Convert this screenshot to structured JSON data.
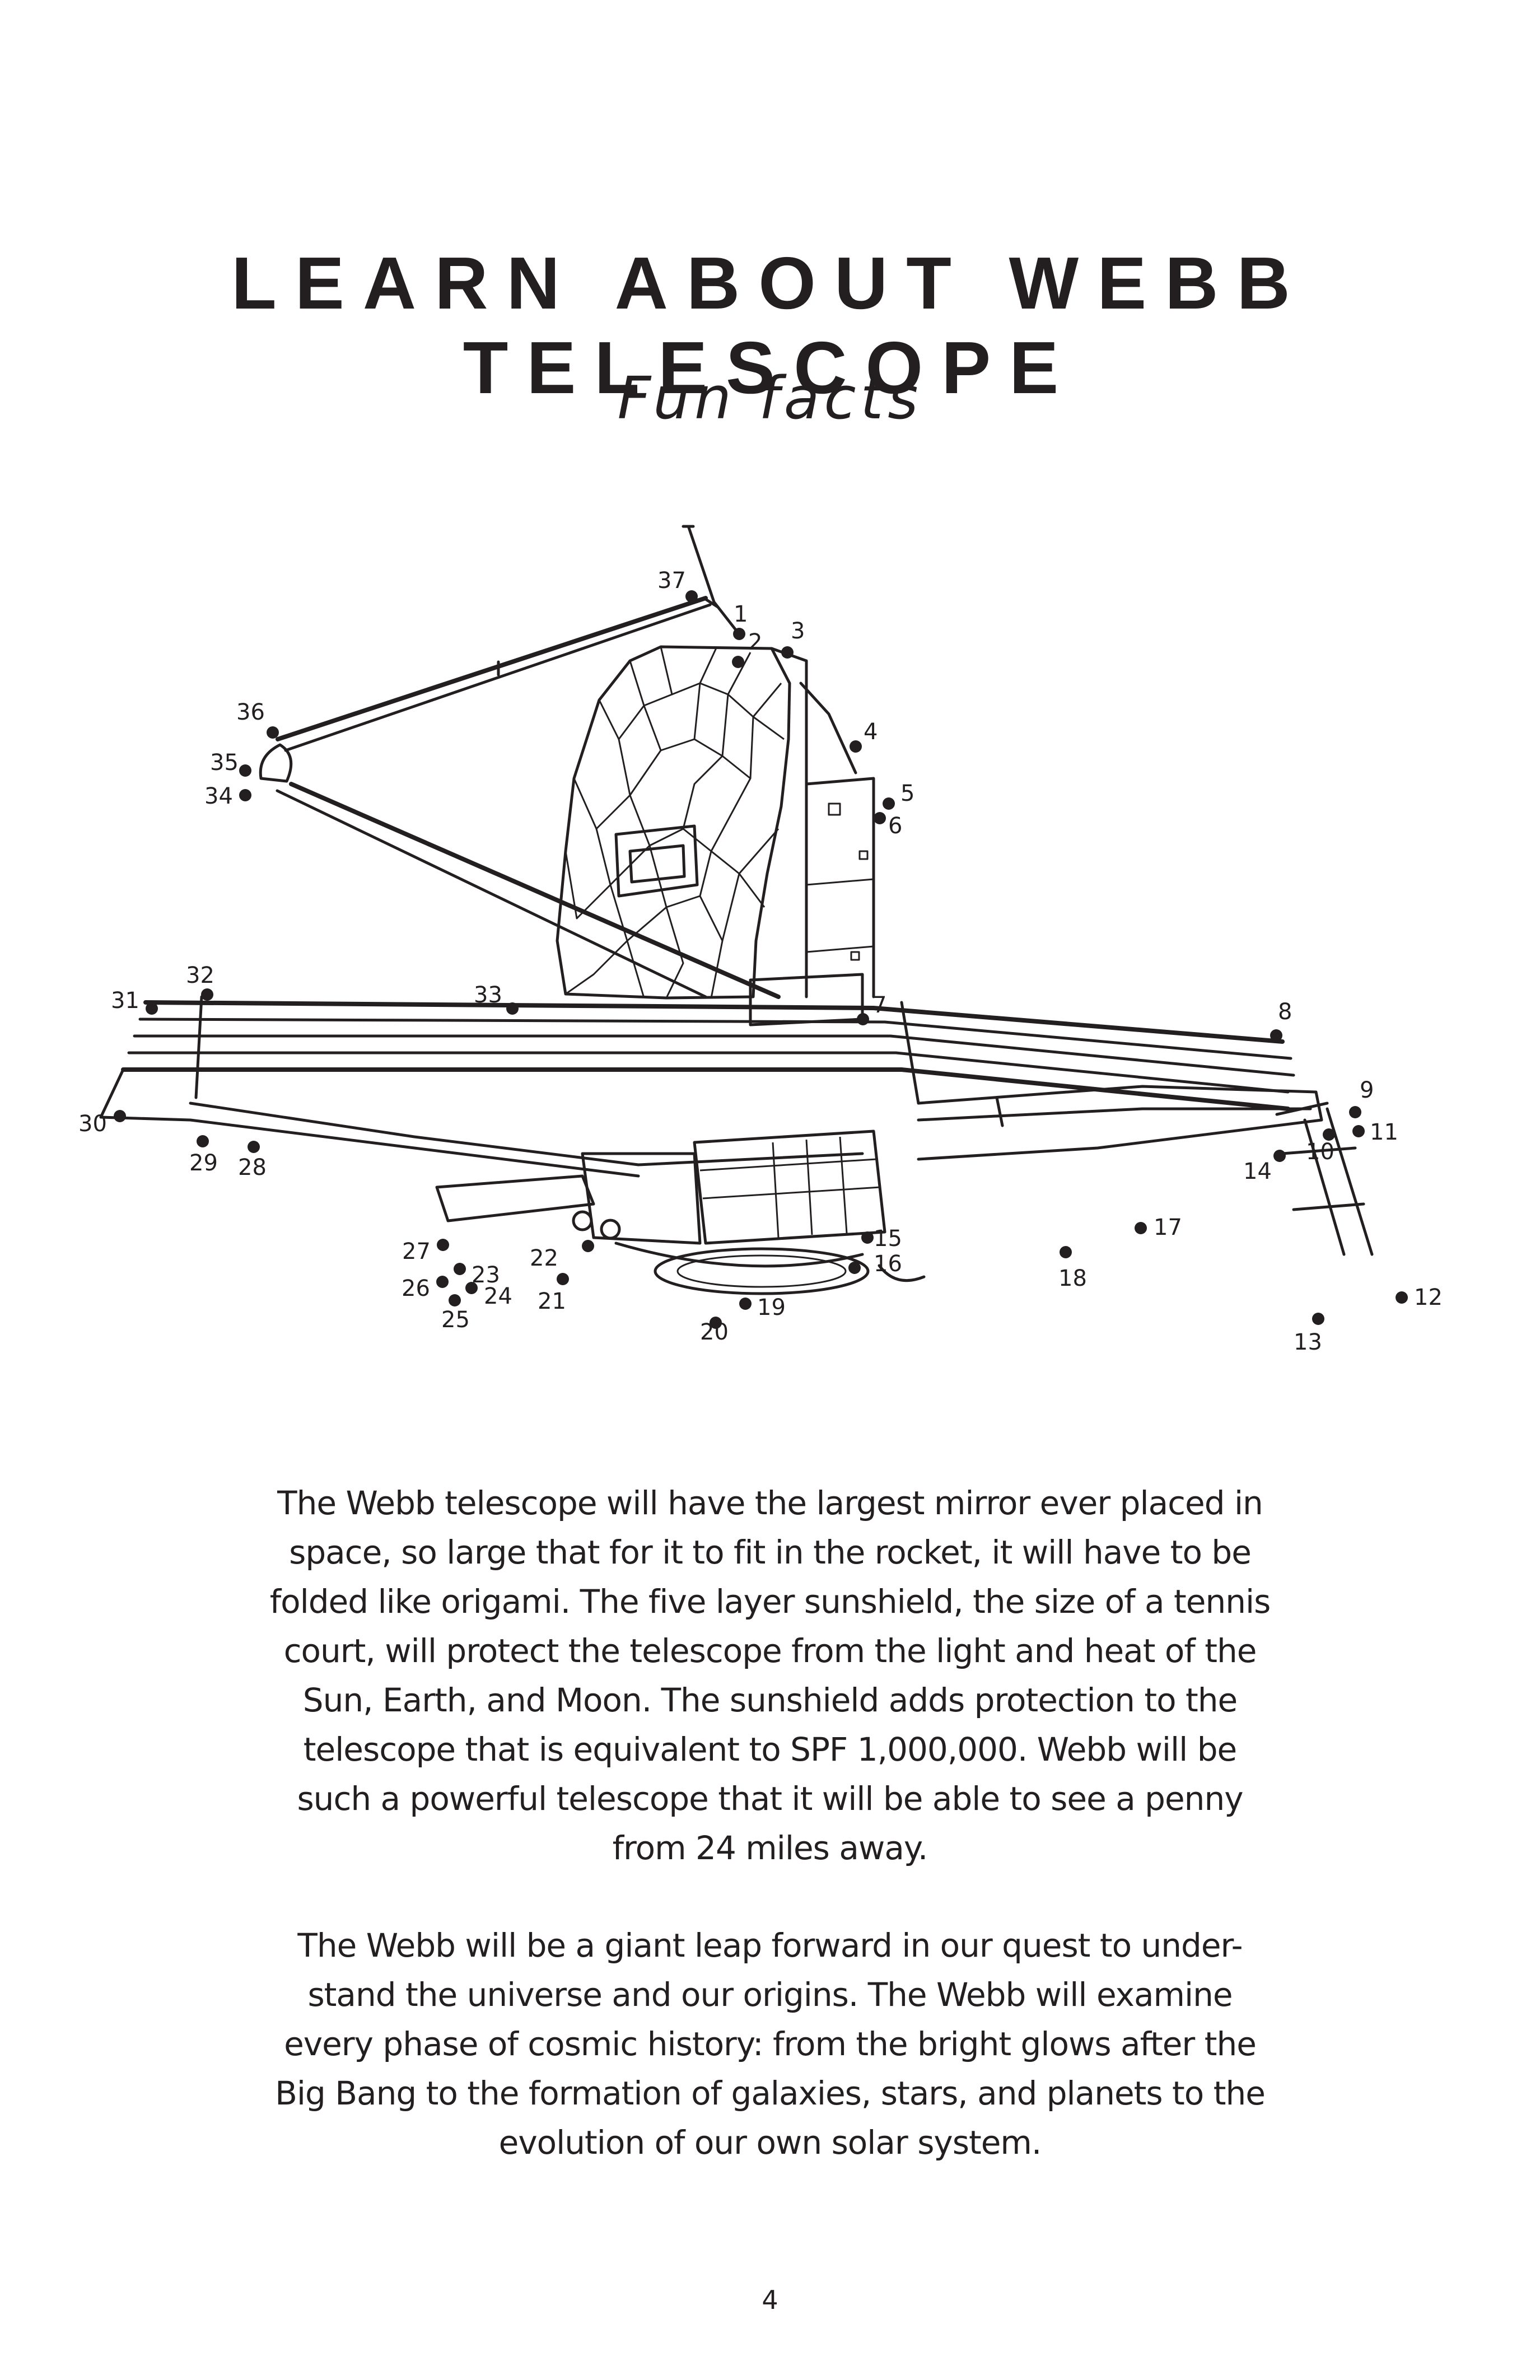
{
  "page": {
    "title": "LEARN ABOUT WEBB TELESCOPE",
    "subtitle": "Fun facts",
    "page_number": "4"
  },
  "diagram": {
    "icon": "webb-telescope-dot-to-dot-illustration",
    "dot_labels": [
      "1",
      "2",
      "3",
      "4",
      "5",
      "6",
      "7",
      "8",
      "9",
      "10",
      "11",
      "12",
      "13",
      "14",
      "15",
      "16",
      "17",
      "18",
      "19",
      "20",
      "21",
      "22",
      "23",
      "24",
      "25",
      "26",
      "27",
      "28",
      "29",
      "30",
      "31",
      "32",
      "33",
      "34",
      "35",
      "36",
      "37"
    ]
  },
  "paragraphs": [
    {
      "lines": [
        "The Webb telescope will have the largest mirror ever placed in",
        "space, so large that for it to fit in the rocket, it will have to be",
        "folded like origami. The five layer sunshield, the size of a tennis",
        "court, will protect the telescope from the light and heat of the",
        "Sun, Earth, and Moon. The sunshield adds protection to the",
        "telescope that is equivalent to SPF 1,000,000. Webb will be",
        "such a powerful telescope that it will be able to see a penny",
        "from 24 miles away."
      ]
    },
    {
      "lines": [
        "The Webb will be a giant leap forward in our quest to under-",
        "stand the universe and our origins. The Webb will examine",
        "every phase of cosmic history: from the bright glows after the",
        "Big Bang to the formation of galaxies, stars, and planets to the",
        "evolution of our own solar system."
      ]
    }
  ]
}
